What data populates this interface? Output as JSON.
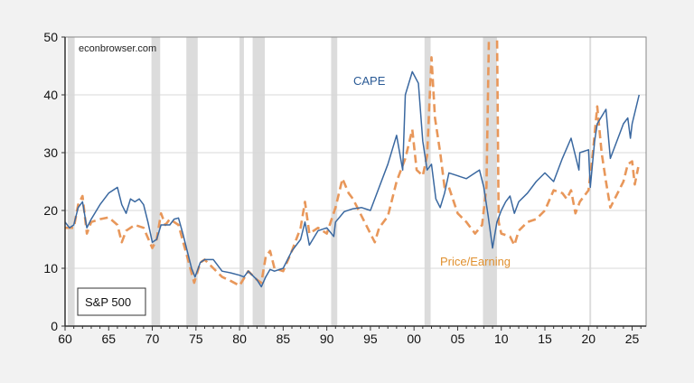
{
  "chart_data": {
    "type": "line",
    "watermark": "econbrowser.com",
    "box_label": "S&P 500",
    "xlim": [
      1960,
      2026.6
    ],
    "ylim": [
      0,
      50
    ],
    "yticks": [
      0,
      10,
      20,
      30,
      40,
      50
    ],
    "xticks": [
      {
        "v": 1960,
        "label": "60"
      },
      {
        "v": 1965,
        "label": "65"
      },
      {
        "v": 1970,
        "label": "70"
      },
      {
        "v": 1975,
        "label": "75"
      },
      {
        "v": 1980,
        "label": "80"
      },
      {
        "v": 1985,
        "label": "85"
      },
      {
        "v": 1990,
        "label": "90"
      },
      {
        "v": 1995,
        "label": "95"
      },
      {
        "v": 2000,
        "label": "00"
      },
      {
        "v": 2005,
        "label": "05"
      },
      {
        "v": 2010,
        "label": "10"
      },
      {
        "v": 2015,
        "label": "15"
      },
      {
        "v": 2020,
        "label": "20"
      },
      {
        "v": 2025,
        "label": "25"
      }
    ],
    "grid": true,
    "recessions": [
      [
        1960.3,
        1961.1
      ],
      [
        1969.9,
        1970.9
      ],
      [
        1973.9,
        1975.2
      ],
      [
        1980.0,
        1980.5
      ],
      [
        1981.5,
        1982.9
      ],
      [
        1990.5,
        1991.2
      ],
      [
        2001.2,
        2001.9
      ],
      [
        2007.9,
        2009.5
      ],
      [
        2020.1,
        2020.3
      ]
    ],
    "series": [
      {
        "name": "CAPE",
        "color": "#3a68a0",
        "dashed": false,
        "points": [
          [
            1960,
            18
          ],
          [
            1960.5,
            17
          ],
          [
            1961,
            17.5
          ],
          [
            1961.5,
            20.5
          ],
          [
            1962,
            21.5
          ],
          [
            1962.5,
            17
          ],
          [
            1963,
            18.5
          ],
          [
            1964,
            21
          ],
          [
            1965,
            23
          ],
          [
            1966,
            24
          ],
          [
            1966.5,
            21
          ],
          [
            1967,
            19.5
          ],
          [
            1967.5,
            22
          ],
          [
            1968,
            21.5
          ],
          [
            1968.5,
            22
          ],
          [
            1969,
            21
          ],
          [
            1969.5,
            18
          ],
          [
            1970,
            14.5
          ],
          [
            1970.5,
            15
          ],
          [
            1971,
            17.5
          ],
          [
            1972,
            17.5
          ],
          [
            1972.5,
            18.5
          ],
          [
            1973,
            18.7
          ],
          [
            1973.5,
            16
          ],
          [
            1974,
            13
          ],
          [
            1974.5,
            10
          ],
          [
            1974.9,
            8.5
          ],
          [
            1975.5,
            11
          ],
          [
            1976,
            11.5
          ],
          [
            1977,
            11.5
          ],
          [
            1977.5,
            10.5
          ],
          [
            1978,
            9.5
          ],
          [
            1979,
            9.2
          ],
          [
            1980,
            8.8
          ],
          [
            1980.5,
            8.5
          ],
          [
            1981,
            9.5
          ],
          [
            1982,
            8
          ],
          [
            1982.5,
            6.8
          ],
          [
            1983,
            8.5
          ],
          [
            1983.5,
            9.8
          ],
          [
            1984,
            9.5
          ],
          [
            1985,
            10
          ],
          [
            1986,
            13
          ],
          [
            1987,
            15
          ],
          [
            1987.5,
            18
          ],
          [
            1988,
            14
          ],
          [
            1989,
            16.5
          ],
          [
            1990,
            17
          ],
          [
            1990.8,
            15.5
          ],
          [
            1991,
            18
          ],
          [
            1992,
            19.8
          ],
          [
            1993,
            20.3
          ],
          [
            1994,
            20.5
          ],
          [
            1995,
            20
          ],
          [
            1996,
            24
          ],
          [
            1997,
            28
          ],
          [
            1998,
            33
          ],
          [
            1998.7,
            27
          ],
          [
            1999,
            40
          ],
          [
            1999.8,
            44
          ],
          [
            2000.5,
            42
          ],
          [
            2001,
            32
          ],
          [
            2001.5,
            27
          ],
          [
            2002,
            28
          ],
          [
            2002.5,
            22
          ],
          [
            2003,
            20.5
          ],
          [
            2003.5,
            23
          ],
          [
            2004,
            26.5
          ],
          [
            2005,
            26
          ],
          [
            2006,
            25.5
          ],
          [
            2007,
            26.5
          ],
          [
            2007.5,
            27
          ],
          [
            2008,
            24
          ],
          [
            2008.5,
            19
          ],
          [
            2009,
            13.5
          ],
          [
            2009.5,
            18
          ],
          [
            2010,
            20
          ],
          [
            2010.5,
            21.5
          ],
          [
            2011,
            22.5
          ],
          [
            2011.5,
            19.5
          ],
          [
            2012,
            21.5
          ],
          [
            2013,
            23
          ],
          [
            2014,
            25
          ],
          [
            2015,
            26.5
          ],
          [
            2016,
            25
          ],
          [
            2017,
            29
          ],
          [
            2018,
            32.5
          ],
          [
            2018.9,
            27
          ],
          [
            2019,
            30
          ],
          [
            2020,
            30.5
          ],
          [
            2020.2,
            24
          ],
          [
            2020.7,
            32
          ],
          [
            2021,
            35
          ],
          [
            2022,
            37.5
          ],
          [
            2022.5,
            29
          ],
          [
            2023,
            31
          ],
          [
            2024,
            35
          ],
          [
            2024.5,
            36
          ],
          [
            2024.8,
            32.5
          ],
          [
            2025,
            35
          ],
          [
            2025.8,
            40
          ]
        ]
      },
      {
        "name": "Price/Earning",
        "color": "#e8975a",
        "dashed": true,
        "points": [
          [
            1960,
            17
          ],
          [
            1961,
            17
          ],
          [
            1961.5,
            21
          ],
          [
            1962,
            22.5
          ],
          [
            1962.5,
            16
          ],
          [
            1963,
            18
          ],
          [
            1964,
            18.5
          ],
          [
            1965,
            18.8
          ],
          [
            1966,
            17.5
          ],
          [
            1966.5,
            14.5
          ],
          [
            1967,
            16.5
          ],
          [
            1968,
            17.5
          ],
          [
            1969,
            17
          ],
          [
            1970,
            13.5
          ],
          [
            1970.5,
            15
          ],
          [
            1971,
            19.5
          ],
          [
            1971.5,
            17.5
          ],
          [
            1972,
            18.5
          ],
          [
            1973,
            17.5
          ],
          [
            1974,
            12
          ],
          [
            1974.8,
            7.5
          ],
          [
            1975.5,
            11
          ],
          [
            1976,
            11.5
          ],
          [
            1977,
            10
          ],
          [
            1978,
            8.5
          ],
          [
            1979,
            7.8
          ],
          [
            1980,
            7
          ],
          [
            1981,
            9.5
          ],
          [
            1982,
            8
          ],
          [
            1982.5,
            7.5
          ],
          [
            1983,
            12
          ],
          [
            1983.5,
            13
          ],
          [
            1984,
            10
          ],
          [
            1985,
            9.5
          ],
          [
            1986,
            13
          ],
          [
            1987,
            17
          ],
          [
            1987.5,
            21.5
          ],
          [
            1988,
            16
          ],
          [
            1989,
            17
          ],
          [
            1990,
            16
          ],
          [
            1991,
            20.5
          ],
          [
            1991.8,
            25.5
          ],
          [
            1992.5,
            23
          ],
          [
            1993,
            22
          ],
          [
            1994,
            19
          ],
          [
            1995,
            16
          ],
          [
            1995.5,
            14.5
          ],
          [
            1996,
            17
          ],
          [
            1997,
            19
          ],
          [
            1998,
            25
          ],
          [
            1999,
            29
          ],
          [
            1999.8,
            34
          ],
          [
            2000.3,
            27
          ],
          [
            2001,
            26
          ],
          [
            2001.5,
            29.5
          ],
          [
            2002,
            46.5
          ],
          [
            2002.4,
            36
          ],
          [
            2003,
            30
          ],
          [
            2003.5,
            24
          ],
          [
            2004,
            24
          ],
          [
            2005,
            19.5
          ],
          [
            2006,
            18
          ],
          [
            2007,
            16
          ],
          [
            2007.8,
            17.5
          ],
          [
            2008.3,
            24
          ],
          [
            2008.8,
            70
          ],
          [
            2009.4,
            70
          ],
          [
            2009.7,
            18
          ],
          [
            2010,
            16
          ],
          [
            2011,
            15.5
          ],
          [
            2011.5,
            14
          ],
          [
            2012,
            16.5
          ],
          [
            2013,
            18
          ],
          [
            2014,
            18.5
          ],
          [
            2015,
            20
          ],
          [
            2016,
            23.5
          ],
          [
            2017,
            23
          ],
          [
            2017.5,
            22
          ],
          [
            2018,
            23.5
          ],
          [
            2018.5,
            19.5
          ],
          [
            2019,
            21.5
          ],
          [
            2020,
            23.5
          ],
          [
            2020.5,
            30
          ],
          [
            2021,
            38
          ],
          [
            2021.5,
            30
          ],
          [
            2022,
            25
          ],
          [
            2022.5,
            20.5
          ],
          [
            2023,
            22
          ],
          [
            2024,
            25
          ],
          [
            2024.5,
            28
          ],
          [
            2025,
            28.5
          ],
          [
            2025.3,
            24.5
          ],
          [
            2025.7,
            27.5
          ]
        ]
      }
    ]
  }
}
